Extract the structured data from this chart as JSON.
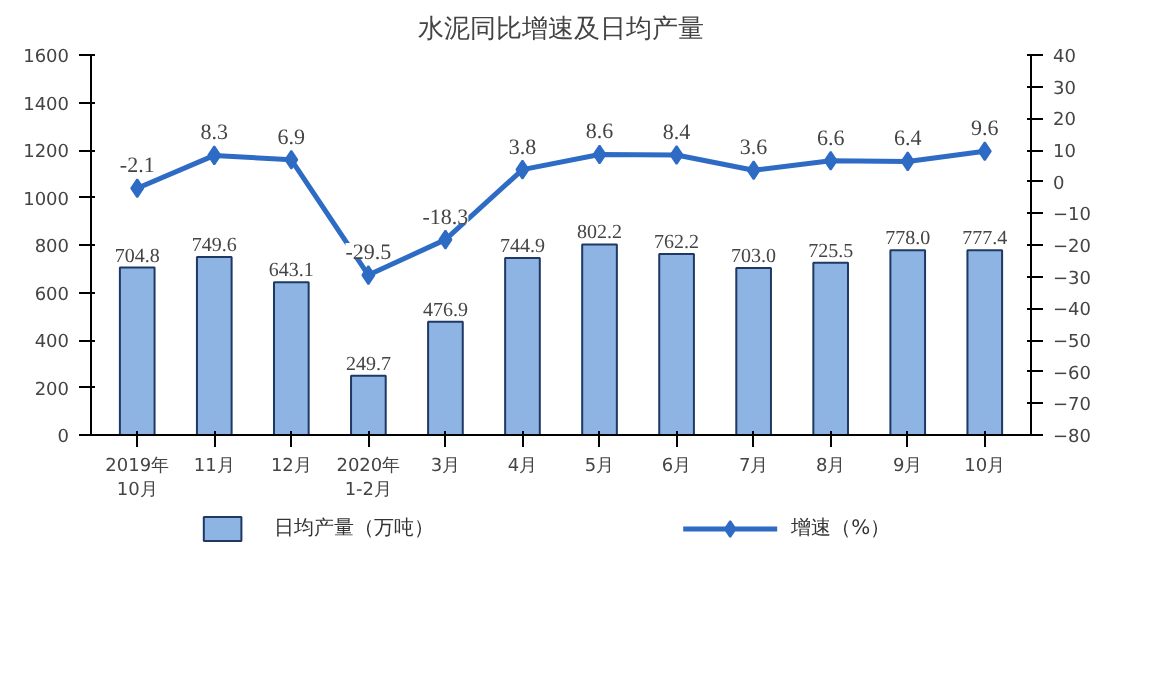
{
  "chart_data": {
    "type": "bar",
    "title": "水泥同比增速及日均产量",
    "categories": [
      "2019年\n10月",
      "11月",
      "12月",
      "2020年\n1-2月",
      "3月",
      "4月",
      "5月",
      "6月",
      "7月",
      "8月",
      "9月",
      "10月"
    ],
    "series": [
      {
        "name": "日均产量（万吨）",
        "color": "#8db4e2",
        "values": [
          704.8,
          749.6,
          643.1,
          249.7,
          476.9,
          744.9,
          802.2,
          762.2,
          703.0,
          725.5,
          778.0,
          777.4
        ],
        "value_labels": [
          "704.8",
          "749.6",
          "643.1",
          "249.7",
          "476.9",
          "744.9",
          "802.2",
          "762.2",
          "703.0",
          "725.5",
          "778.0",
          "777.4"
        ]
      },
      {
        "name": "增速（%）",
        "type": "line",
        "axis": "y2",
        "color": "#2e6bc4",
        "marker": "diamond",
        "values": [
          -2.1,
          8.3,
          6.9,
          -29.5,
          -18.3,
          3.8,
          8.6,
          8.4,
          3.6,
          6.6,
          6.4,
          9.6
        ],
        "value_labels": [
          "-2.1",
          "8.3",
          "6.9",
          "-29.5",
          "-18.3",
          "3.8",
          "8.6",
          "8.4",
          "3.6",
          "6.6",
          "6.4",
          "9.6"
        ]
      }
    ],
    "ylim": [
      0,
      1600
    ],
    "yticks": [
      0,
      200,
      400,
      600,
      800,
      1000,
      1200,
      1400,
      1600
    ],
    "y2lim": [
      -80,
      40
    ],
    "y2ticks": [
      -80,
      -70,
      -60,
      -50,
      -40,
      -30,
      -20,
      -10,
      0,
      10,
      20,
      30,
      40
    ],
    "legend": "bottom"
  }
}
